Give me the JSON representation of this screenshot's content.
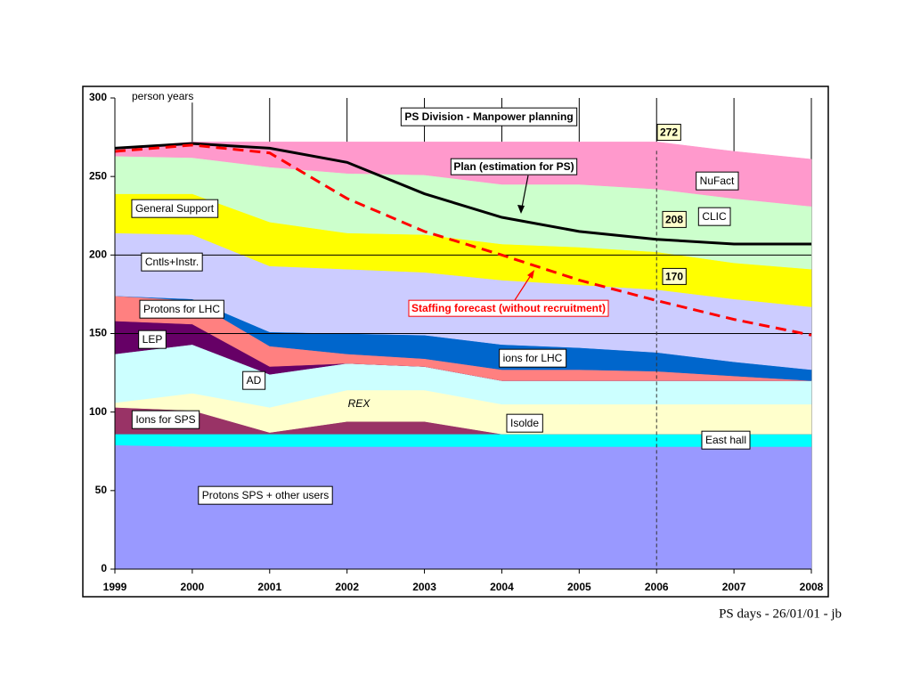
{
  "chart_data": {
    "type": "stacked_area",
    "title": "PS Division - Manpower planning",
    "y_label": "person years",
    "footer": "PS days - 26/01/01 - jb",
    "x": [
      1999,
      2000,
      2001,
      2002,
      2003,
      2004,
      2005,
      2006,
      2007,
      2008
    ],
    "xlim": [
      1999,
      2008
    ],
    "xticks": [
      1999,
      2000,
      2001,
      2002,
      2003,
      2004,
      2005,
      2006,
      2007,
      2008
    ],
    "ylim": [
      0,
      300
    ],
    "yticks": [
      0,
      50,
      100,
      150,
      200,
      250,
      300
    ],
    "hlines": [
      150,
      200
    ],
    "vline": 2006,
    "series": [
      {
        "name": "Protons SPS + other users",
        "color": "#9999ff",
        "values": [
          79,
          78,
          78,
          78,
          78,
          78,
          78,
          78,
          78,
          78
        ]
      },
      {
        "name": "East hall",
        "color": "#00ffff",
        "values": [
          7,
          8,
          8,
          8,
          8,
          8,
          8,
          8,
          8,
          8
        ]
      },
      {
        "name": "Ions for SPS",
        "color": "#993366",
        "values": [
          17,
          15,
          1,
          8,
          8,
          0,
          0,
          0,
          0,
          0
        ]
      },
      {
        "name": "Isolde",
        "color": "#ffffcc",
        "values": [
          3,
          11,
          16,
          20,
          20,
          19,
          19,
          19,
          19,
          19
        ]
      },
      {
        "name": "AD",
        "color": "#ccffff",
        "values": [
          31,
          31,
          21,
          17,
          15,
          15,
          15,
          15,
          15,
          15
        ]
      },
      {
        "name": "LEP",
        "color": "#660066",
        "values": [
          21,
          13,
          5,
          0,
          0,
          0,
          0,
          0,
          0,
          0
        ]
      },
      {
        "name": "Protons for LHC",
        "color": "#ff8080",
        "values": [
          16,
          15,
          13,
          6,
          5,
          7,
          7,
          6,
          3,
          0
        ]
      },
      {
        "name": "ions for LHC",
        "color": "#0066cc",
        "values": [
          0,
          1,
          9,
          13,
          15,
          16,
          14,
          12,
          9,
          7
        ]
      },
      {
        "name": "Cntls+Instr.",
        "color": "#ccccff",
        "values": [
          40,
          41,
          42,
          41,
          40,
          41,
          40,
          40,
          40,
          40
        ]
      },
      {
        "name": "General Support",
        "color": "#ffff00",
        "values": [
          25,
          26,
          28,
          23,
          24,
          23,
          24,
          24,
          23,
          24
        ]
      },
      {
        "name": "CLIC",
        "color": "#ccffcc",
        "values": [
          24,
          23,
          35,
          38,
          38,
          38,
          40,
          40,
          41,
          40
        ]
      },
      {
        "name": "NuFact",
        "color": "#ff99cc",
        "values": [
          5,
          10,
          16,
          20,
          21,
          27,
          27,
          30,
          30,
          30
        ]
      }
    ],
    "lines": [
      {
        "name": "Plan (estimation for PS)",
        "color": "#000000",
        "values": [
          268,
          271,
          268,
          259,
          239,
          224,
          215,
          210,
          207,
          207
        ]
      },
      {
        "name": "Staffing forecast (without recruitment)",
        "color": "#ff0000",
        "values": [
          266,
          270,
          265,
          236,
          215,
          200,
          184,
          171,
          159,
          149
        ]
      }
    ],
    "annotations": [
      "REX"
    ],
    "callouts": [
      272,
      208,
      170
    ]
  }
}
